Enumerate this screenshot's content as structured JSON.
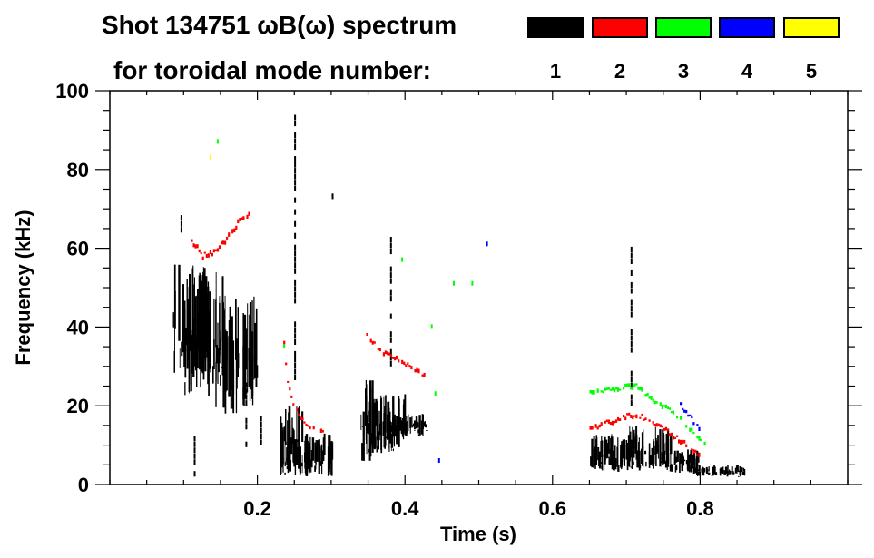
{
  "chart_data": {
    "type": "heatmap",
    "title_line1": "Shot 134751 ωB(ω) spectrum",
    "title_line2": "for toroidal mode number:",
    "xlabel": "Time (s)",
    "ylabel": "Frequency (kHz)",
    "xlim": [
      0.0,
      1.0
    ],
    "ylim": [
      0,
      100
    ],
    "x_ticks": [
      {
        "value": 0.2,
        "label": "0.2"
      },
      {
        "value": 0.4,
        "label": "0.4"
      },
      {
        "value": 0.6,
        "label": "0.6"
      },
      {
        "value": 0.8,
        "label": "0.8"
      }
    ],
    "x_minor_step": 0.05,
    "y_ticks": [
      {
        "value": 0,
        "label": "0"
      },
      {
        "value": 20,
        "label": "20"
      },
      {
        "value": 40,
        "label": "40"
      },
      {
        "value": 60,
        "label": "60"
      },
      {
        "value": 80,
        "label": "80"
      },
      {
        "value": 100,
        "label": "100"
      }
    ],
    "y_minor_step": 5,
    "legend": {
      "placement": "top-right",
      "entries": [
        {
          "label": "1",
          "color": "#000000"
        },
        {
          "label": "2",
          "color": "#ff0000"
        },
        {
          "label": "3",
          "color": "#00ff00"
        },
        {
          "label": "4",
          "color": "#0000ff"
        },
        {
          "label": "5",
          "color": "#ffff00"
        }
      ]
    },
    "series": [
      {
        "mode": "1",
        "color": "#000000",
        "blobs": [
          {
            "t0": 0.085,
            "t1": 0.13,
            "f0": 28,
            "f1": 56
          },
          {
            "t0": 0.1,
            "t1": 0.16,
            "f0": 22,
            "f1": 54
          },
          {
            "t0": 0.14,
            "t1": 0.2,
            "f0": 18,
            "f1": 48
          },
          {
            "t0": 0.23,
            "t1": 0.3,
            "f0": 2,
            "f1": 13
          },
          {
            "t0": 0.23,
            "t1": 0.26,
            "f0": 2,
            "f1": 20
          },
          {
            "t0": 0.34,
            "t1": 0.36,
            "f0": 6,
            "f1": 27
          },
          {
            "t0": 0.35,
            "t1": 0.4,
            "f0": 8,
            "f1": 23
          },
          {
            "t0": 0.38,
            "t1": 0.43,
            "f0": 12,
            "f1": 18
          },
          {
            "t0": 0.65,
            "t1": 0.72,
            "f0": 3,
            "f1": 13
          },
          {
            "t0": 0.7,
            "t1": 0.76,
            "f0": 4,
            "f1": 15
          },
          {
            "t0": 0.75,
            "t1": 0.8,
            "f0": 3,
            "f1": 9
          },
          {
            "t0": 0.79,
            "t1": 0.86,
            "f0": 2,
            "f1": 5
          }
        ],
        "lines": [
          {
            "t": 0.251,
            "f0": 22,
            "f1": 94
          },
          {
            "t": 0.381,
            "f0": 30,
            "f1": 66
          },
          {
            "t": 0.707,
            "f0": 20,
            "f1": 60
          },
          {
            "t": 0.097,
            "f0": 64,
            "f1": 69
          },
          {
            "t": 0.302,
            "f0": 71,
            "f1": 74
          },
          {
            "t": 0.115,
            "f0": 2,
            "f1": 18
          },
          {
            "t": 0.185,
            "f0": 8,
            "f1": 26
          },
          {
            "t": 0.205,
            "f0": 10,
            "f1": 22
          }
        ]
      },
      {
        "mode": "2",
        "color": "#ff0000",
        "path": [
          {
            "t": 0.11,
            "f": 62
          },
          {
            "t": 0.125,
            "f": 58
          },
          {
            "t": 0.14,
            "f": 59
          },
          {
            "t": 0.16,
            "f": 63
          },
          {
            "t": 0.175,
            "f": 67
          },
          {
            "t": 0.19,
            "f": 69
          }
        ],
        "path2": [
          {
            "t": 0.235,
            "f": 36
          },
          {
            "t": 0.24,
            "f": 26
          },
          {
            "t": 0.25,
            "f": 19
          },
          {
            "t": 0.26,
            "f": 16
          },
          {
            "t": 0.275,
            "f": 14
          },
          {
            "t": 0.29,
            "f": 13.5
          }
        ],
        "path3": [
          {
            "t": 0.342,
            "f": 41
          },
          {
            "t": 0.35,
            "f": 37
          },
          {
            "t": 0.365,
            "f": 34
          },
          {
            "t": 0.385,
            "f": 32
          },
          {
            "t": 0.405,
            "f": 30
          },
          {
            "t": 0.43,
            "f": 27
          }
        ],
        "path4": [
          {
            "t": 0.65,
            "f": 14
          },
          {
            "t": 0.68,
            "f": 16
          },
          {
            "t": 0.7,
            "f": 17.5
          },
          {
            "t": 0.72,
            "f": 17
          },
          {
            "t": 0.75,
            "f": 14
          },
          {
            "t": 0.78,
            "f": 10
          },
          {
            "t": 0.8,
            "f": 7
          }
        ]
      },
      {
        "mode": "3",
        "color": "#00ff00",
        "path": [
          {
            "t": 0.65,
            "f": 23
          },
          {
            "t": 0.68,
            "f": 24
          },
          {
            "t": 0.71,
            "f": 25
          },
          {
            "t": 0.74,
            "f": 21
          },
          {
            "t": 0.77,
            "f": 17
          },
          {
            "t": 0.79,
            "f": 13
          },
          {
            "t": 0.81,
            "f": 10
          }
        ],
        "points": [
          {
            "t": 0.145,
            "f": 87
          },
          {
            "t": 0.435,
            "f": 40
          },
          {
            "t": 0.465,
            "f": 51
          },
          {
            "t": 0.49,
            "f": 51
          },
          {
            "t": 0.44,
            "f": 23
          },
          {
            "t": 0.235,
            "f": 35
          },
          {
            "t": 0.395,
            "f": 57
          }
        ]
      },
      {
        "mode": "4",
        "color": "#0000ff",
        "path": [
          {
            "t": 0.77,
            "f": 21
          },
          {
            "t": 0.78,
            "f": 18
          },
          {
            "t": 0.79,
            "f": 16
          },
          {
            "t": 0.8,
            "f": 14
          }
        ],
        "points": [
          {
            "t": 0.51,
            "f": 61
          },
          {
            "t": 0.445,
            "f": 6
          }
        ]
      },
      {
        "mode": "5",
        "color": "#ffff00",
        "points": [
          {
            "t": 0.135,
            "f": 83
          }
        ]
      }
    ]
  }
}
